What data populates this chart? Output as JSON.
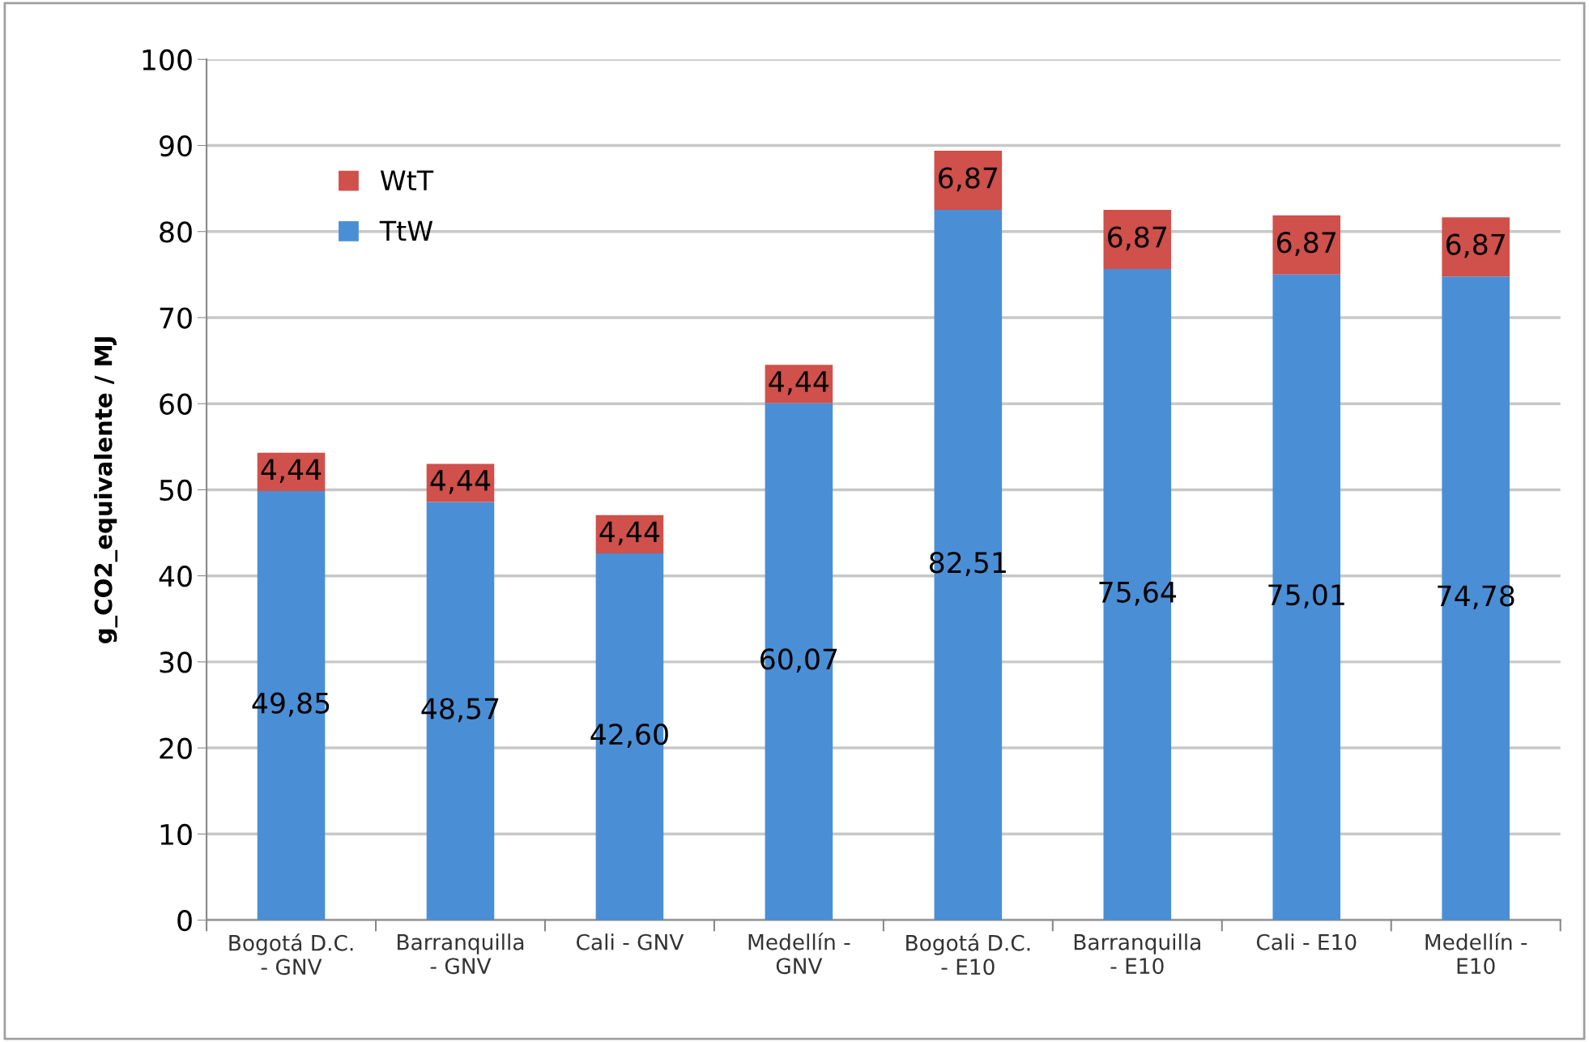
{
  "chart_data": {
    "type": "bar",
    "stacked": true,
    "ylabel": "g_CO2_equivalente / MJ",
    "categories": [
      "Bogotá D.C.\n- GNV",
      "Barranquilla\n- GNV",
      "Cali - GNV",
      "Medellín -\nGNV",
      "Bogotá D.C.\n- E10",
      "Barranquilla\n- E10",
      "Cali - E10",
      "Medellín -\nE10"
    ],
    "series": [
      {
        "name": "TtW",
        "color": "#4a8fd6",
        "values": [
          49.85,
          48.57,
          42.6,
          60.07,
          82.51,
          75.64,
          75.01,
          74.78
        ],
        "value_labels": [
          "49,85",
          "48,57",
          "42,60",
          "60,07",
          "82,51",
          "75,64",
          "75,01",
          "74,78"
        ]
      },
      {
        "name": "WtT",
        "color": "#d0504b",
        "values": [
          4.44,
          4.44,
          4.44,
          4.44,
          6.87,
          6.87,
          6.87,
          6.87
        ],
        "value_labels": [
          "4,44",
          "4,44",
          "4,44",
          "4,44",
          "6,87",
          "6,87",
          "6,87",
          "6,87"
        ]
      }
    ],
    "ylim": [
      0,
      100
    ],
    "yticks": [
      0,
      10,
      20,
      30,
      40,
      50,
      60,
      70,
      80,
      90,
      100
    ],
    "grid": "y",
    "legend": "top left"
  }
}
